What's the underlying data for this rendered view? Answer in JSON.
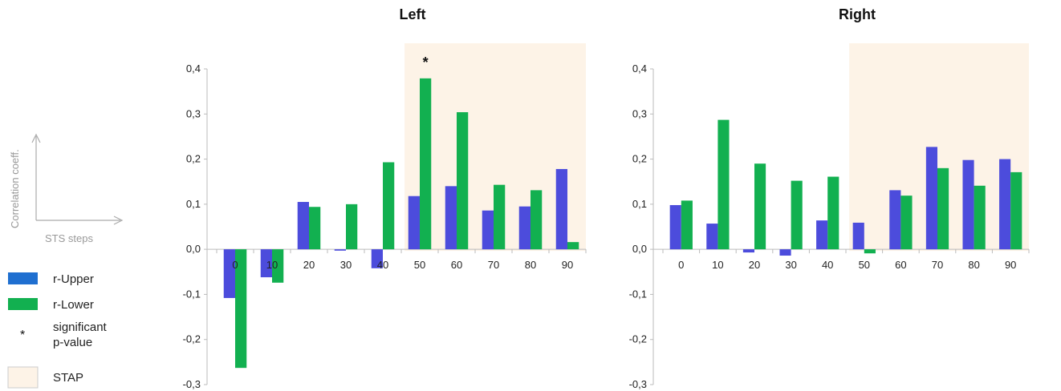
{
  "legend": {
    "axes_icon": {
      "y_caption": "Correlation coeff.",
      "x_caption": "STS steps"
    },
    "items": [
      {
        "label": "r-Upper",
        "color": "#1f6fd0"
      },
      {
        "label": "r-Lower",
        "color": "#12b050"
      },
      {
        "label": "significant\np-value",
        "symbol": "*"
      },
      {
        "label": "STAP",
        "color": "#fdf3e7"
      }
    ]
  },
  "colors": {
    "upper_bar": "#4c4cdc",
    "lower_bar": "#12b050",
    "stap_region": "#fdf3e7",
    "axis": "#bbbbbb"
  },
  "chart_data": [
    {
      "type": "bar",
      "title": "Left",
      "categories": [
        "0",
        "10",
        "20",
        "30",
        "40",
        "50",
        "60",
        "70",
        "80",
        "90"
      ],
      "series": [
        {
          "name": "r-Upper",
          "values": [
            -0.108,
            -0.062,
            0.105,
            -0.003,
            -0.042,
            0.118,
            0.14,
            0.086,
            0.095,
            0.178
          ]
        },
        {
          "name": "r-Lower",
          "values": [
            -0.263,
            -0.074,
            0.094,
            0.1,
            0.193,
            0.379,
            0.304,
            0.143,
            0.131,
            0.016
          ]
        }
      ],
      "ylim": [
        -0.3,
        0.4
      ],
      "yticks": [
        "-0,3",
        "-0,2",
        "-0,1",
        "0,0",
        "0,1",
        "0,2",
        "0,3",
        "0,4"
      ],
      "stap_region": {
        "from_category": "50",
        "to_category": "90"
      },
      "significance": [
        {
          "category": "50",
          "series": "r-Lower",
          "marker": "*"
        }
      ]
    },
    {
      "type": "bar",
      "title": "Right",
      "categories": [
        "0",
        "10",
        "20",
        "30",
        "40",
        "50",
        "60",
        "70",
        "80",
        "90"
      ],
      "series": [
        {
          "name": "r-Upper",
          "values": [
            0.098,
            0.057,
            -0.007,
            -0.014,
            0.064,
            0.059,
            0.131,
            0.227,
            0.198,
            0.2
          ]
        },
        {
          "name": "r-Lower",
          "values": [
            0.108,
            0.287,
            0.19,
            0.152,
            0.161,
            -0.009,
            0.119,
            0.18,
            0.141,
            0.171
          ]
        }
      ],
      "ylim": [
        -0.3,
        0.4
      ],
      "yticks": [
        "-0,3",
        "-0,2",
        "-0,1",
        "0,0",
        "0,1",
        "0,2",
        "0,3",
        "0,4"
      ],
      "stap_region": {
        "from_category": "50",
        "to_category": "90"
      },
      "significance": []
    }
  ]
}
